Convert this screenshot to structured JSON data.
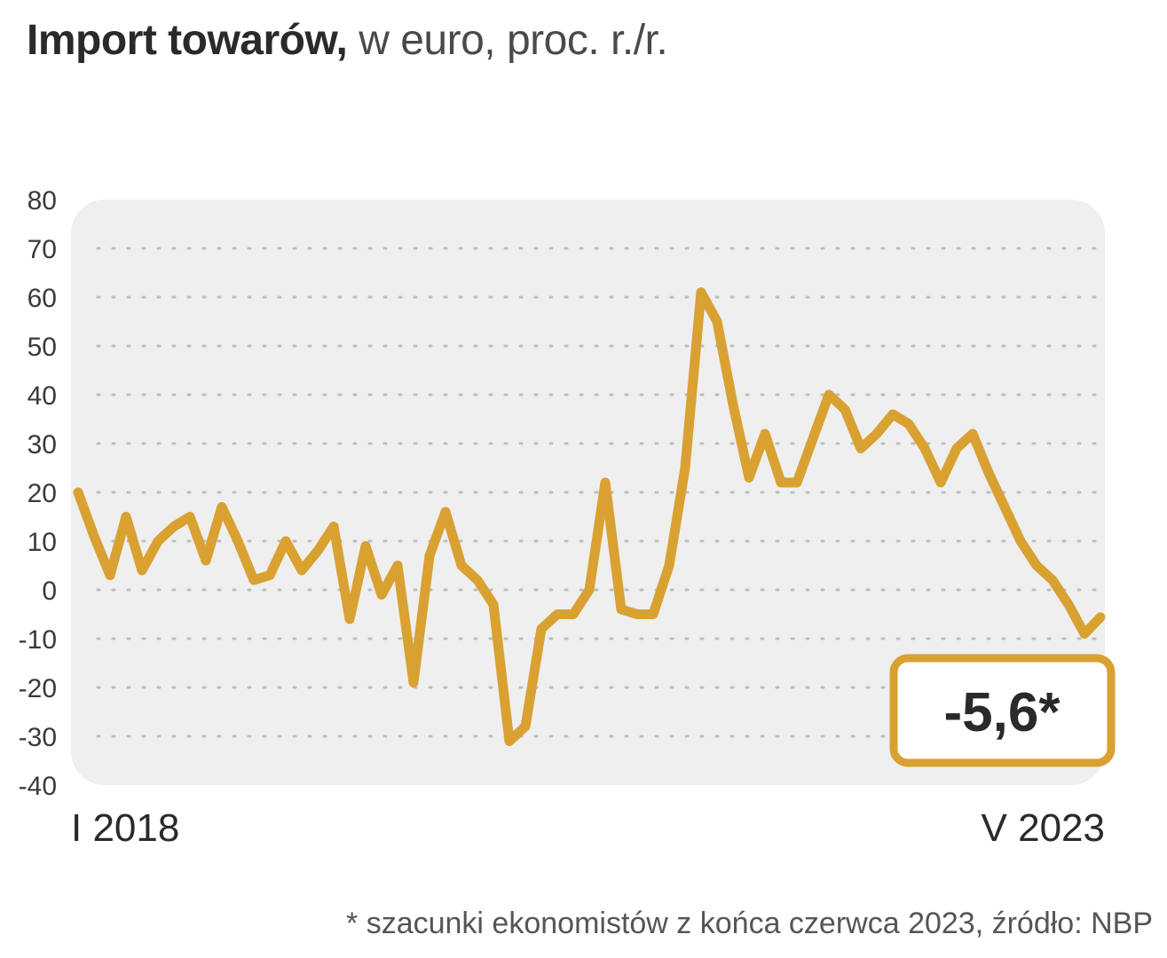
{
  "title": {
    "bold": "Import towarów,",
    "rest": " w euro, proc. r./r."
  },
  "footnote": "* szacunki ekonomistów z końca czerwca 2023, źródło: NBP",
  "colors": {
    "line": "#d9a131",
    "plot_bg": "#efefef",
    "grid": "#bdbdbd",
    "text": "#2a2a2a"
  },
  "chart_data": {
    "type": "line",
    "title": "Import towarów, w euro, proc. r./r.",
    "x_start_label": "I 2018",
    "x_end_label": "V 2023",
    "ylim": [
      -40,
      80
    ],
    "yticks": [
      80,
      70,
      60,
      50,
      40,
      30,
      20,
      10,
      0,
      -10,
      -20,
      -30,
      -40
    ],
    "grid": "horizontal-dotted",
    "callout": "-5,6*",
    "series": [
      {
        "values": [
          20,
          11,
          3,
          15,
          4,
          10,
          13,
          15,
          6,
          17,
          10,
          2,
          3,
          10,
          4,
          8,
          13,
          -6,
          9,
          -1,
          5,
          -19,
          7,
          16,
          5,
          2,
          -3,
          -31,
          -28,
          -8,
          -5,
          -5,
          0,
          22,
          -4,
          -5,
          -5,
          5,
          25,
          61,
          55,
          38,
          23,
          32,
          22,
          22,
          31,
          40,
          37,
          29,
          32,
          36,
          34,
          29,
          22,
          29,
          32,
          24,
          17,
          10,
          5,
          2,
          -3,
          -9,
          -5.6
        ]
      }
    ]
  }
}
